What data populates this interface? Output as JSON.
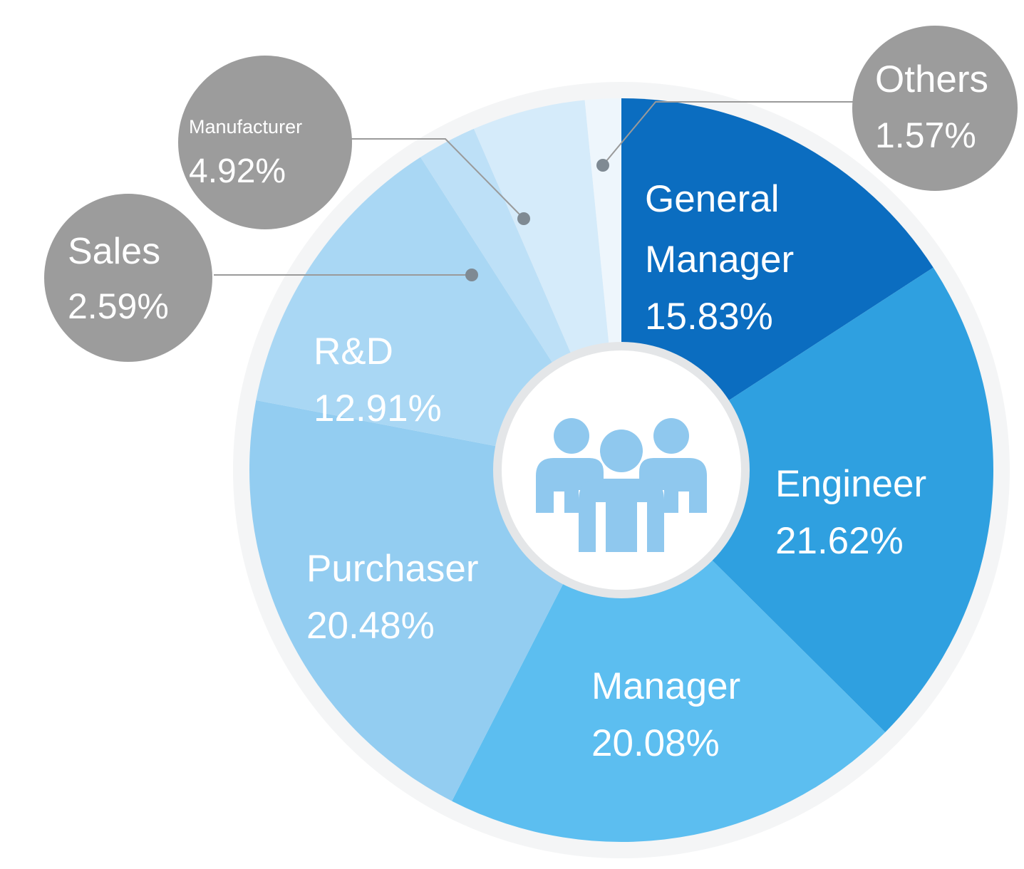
{
  "chart_data": {
    "type": "pie",
    "categories": [
      "General Manager",
      "Engineer",
      "Manager",
      "Purchaser",
      "R&D",
      "Sales",
      "Manufacturer",
      "Others"
    ],
    "values": [
      15.83,
      21.62,
      20.08,
      20.48,
      12.91,
      2.59,
      4.92,
      1.57
    ],
    "value_labels": [
      "15.83%",
      "21.62%",
      "20.08%",
      "20.48%",
      "12.91%",
      "2.59%",
      "4.92%",
      "1.57%"
    ],
    "colors": [
      "#0b6dc0",
      "#2fa0e0",
      "#5cbef0",
      "#93cdf1",
      "#a9d7f4",
      "#bde0f7",
      "#d5ebfa",
      "#eef6fc"
    ]
  }
}
